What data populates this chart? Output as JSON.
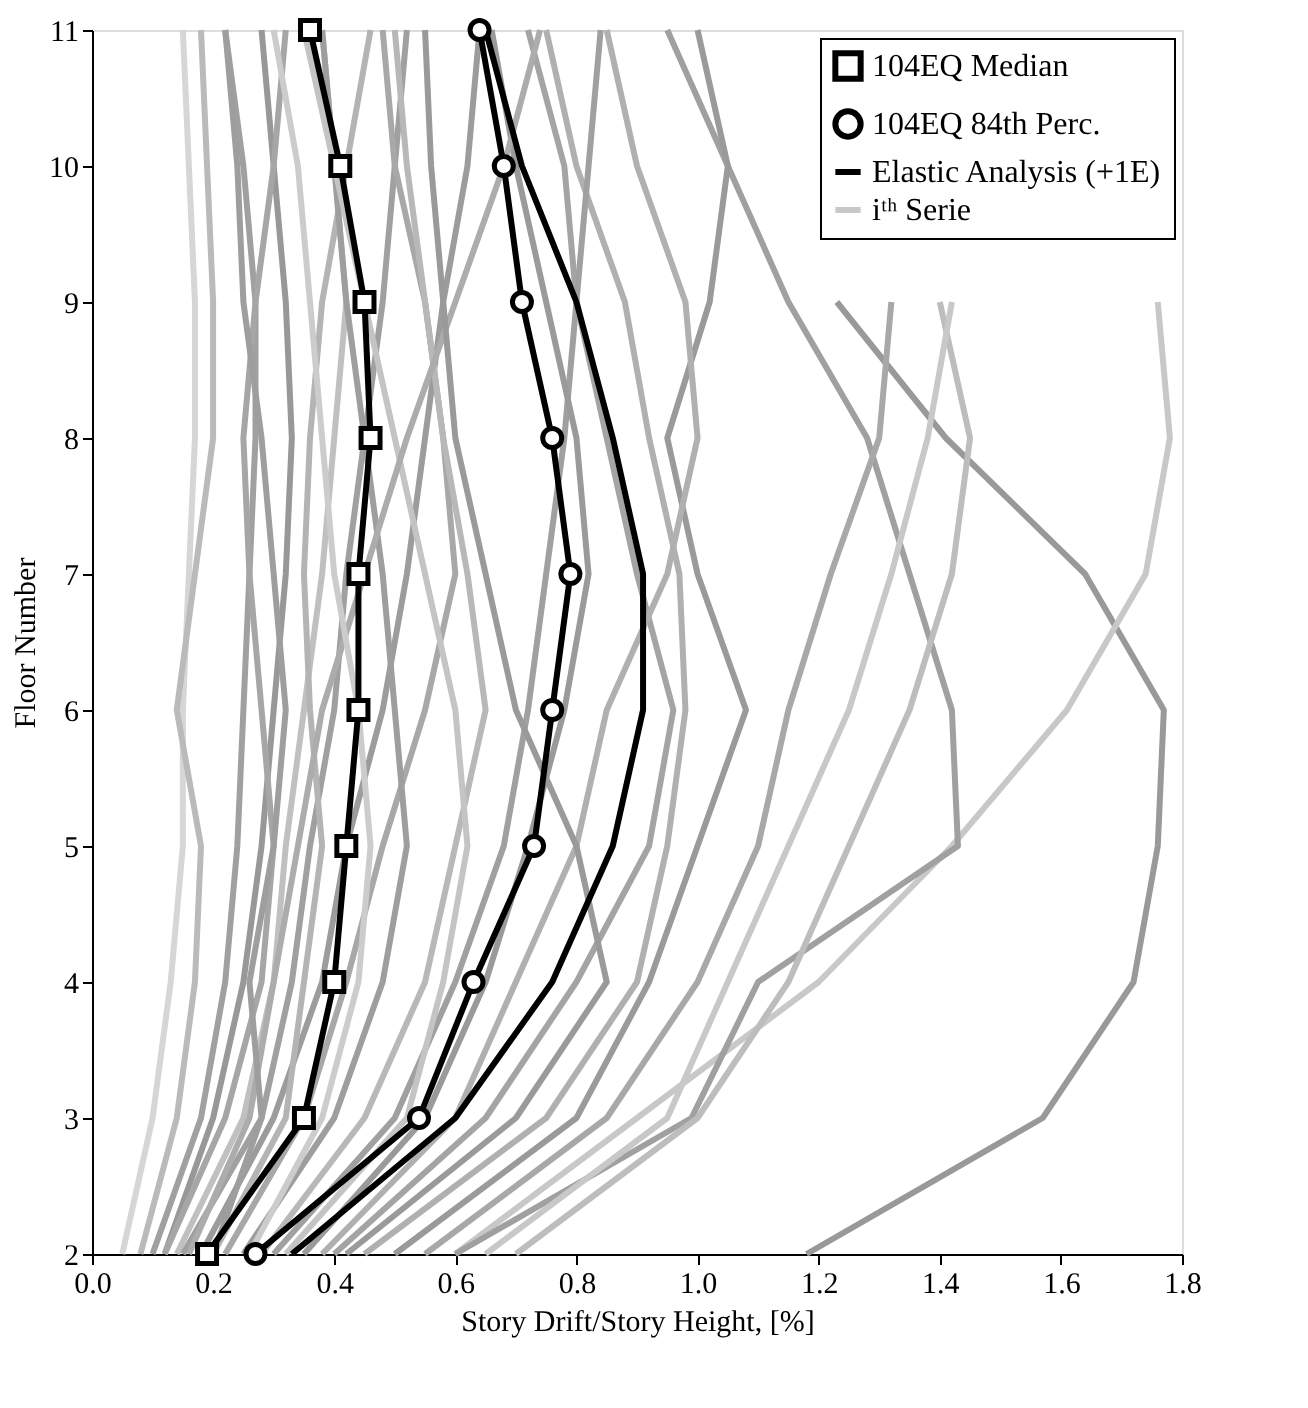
{
  "chart_data": {
    "type": "line",
    "xlabel": "Story Drift/Story Height, [%]",
    "ylabel": "Floor Number",
    "xlim": [
      0,
      1.8
    ],
    "xticks": [
      {
        "value": 0,
        "label": "0.0"
      },
      0.2,
      0.4,
      0.6,
      0.8,
      {
        "value": 1,
        "label": "1.0"
      },
      1.2,
      1.4,
      1.6,
      1.8
    ],
    "ylim": [
      2,
      11
    ],
    "yticks": [
      2,
      3,
      4,
      5,
      6,
      7,
      8,
      9,
      10,
      11
    ],
    "grid": false,
    "legend": "top right",
    "line_style": "solid",
    "series": [
      {
        "color": "#999999",
        "marker": "none",
        "x": [
          1.18,
          1.57,
          1.72,
          1.76,
          1.77,
          1.64,
          1.41,
          1.23,
          null,
          null
        ],
        "values": [
          2,
          3,
          4,
          5,
          6,
          7,
          8,
          9,
          null,
          null
        ]
      },
      {
        "color": "#c8c8c8",
        "marker": "none",
        "x": [
          0.6,
          0.9,
          1.2,
          1.42,
          1.61,
          1.74,
          1.78,
          1.76,
          null,
          null
        ],
        "values": [
          2,
          3,
          4,
          5,
          6,
          7,
          8,
          9,
          null,
          null
        ]
      },
      {
        "color": "#a0a0a0",
        "marker": "none",
        "x": [
          0.6,
          0.99,
          1.1,
          1.43,
          1.42,
          1.35,
          1.28,
          1.15,
          1.05,
          0.95
        ],
        "values": [
          2,
          3,
          4,
          5,
          6,
          7,
          8,
          9,
          10,
          11
        ]
      },
      {
        "color": "#bdbdbd",
        "marker": "none",
        "x": [
          0.7,
          1.0,
          1.15,
          1.25,
          1.35,
          1.42,
          1.45,
          1.4,
          null,
          null
        ],
        "values": [
          2,
          3,
          4,
          5,
          6,
          7,
          8,
          9,
          null,
          null
        ]
      },
      {
        "color": "#a8a8a8",
        "marker": "none",
        "x": [
          0.55,
          0.85,
          1.0,
          1.1,
          1.15,
          1.22,
          1.3,
          1.32,
          null,
          null
        ],
        "values": [
          2,
          3,
          4,
          5,
          6,
          7,
          8,
          9,
          null,
          null
        ]
      },
      {
        "color": "#9a9a9a",
        "marker": "none",
        "x": [
          0.5,
          0.8,
          0.92,
          1.0,
          1.08,
          1.0,
          0.95,
          1.02,
          1.05,
          1.0
        ],
        "values": [
          2,
          3,
          4,
          5,
          6,
          7,
          8,
          9,
          10,
          11
        ]
      },
      {
        "color": "#b0b0b0",
        "marker": "none",
        "x": [
          0.45,
          0.75,
          0.9,
          0.95,
          0.98,
          0.97,
          0.92,
          0.88,
          0.8,
          0.75
        ],
        "values": [
          2,
          3,
          4,
          5,
          6,
          7,
          8,
          9,
          10,
          11
        ]
      },
      {
        "color": "#a4a4a4",
        "marker": "none",
        "x": [
          0.4,
          0.65,
          0.8,
          0.92,
          0.96,
          0.9,
          0.85,
          0.8,
          0.78,
          0.72
        ],
        "values": [
          2,
          3,
          4,
          5,
          6,
          7,
          8,
          9,
          10,
          11
        ]
      },
      {
        "color": "#d6d6d6",
        "marker": "none",
        "x": [
          0.05,
          0.1,
          0.13,
          0.15,
          0.15,
          0.16,
          0.17,
          0.17,
          0.16,
          0.15
        ],
        "values": [
          2,
          3,
          4,
          5,
          6,
          7,
          8,
          9,
          10,
          11
        ]
      },
      {
        "color": "#bababa",
        "marker": "none",
        "x": [
          0.08,
          0.14,
          0.17,
          0.18,
          0.14,
          0.17,
          0.2,
          0.2,
          0.19,
          0.18
        ],
        "values": [
          2,
          3,
          4,
          5,
          6,
          7,
          8,
          9,
          10,
          11
        ]
      },
      {
        "color": "#a0a0a0",
        "marker": "none",
        "x": [
          0.1,
          0.18,
          0.22,
          0.24,
          0.25,
          0.26,
          0.27,
          0.27,
          0.25,
          0.22
        ],
        "values": [
          2,
          3,
          4,
          5,
          6,
          7,
          8,
          9,
          10,
          11
        ]
      },
      {
        "color": "#989898",
        "marker": "none",
        "x": [
          0.12,
          0.2,
          0.25,
          0.28,
          0.3,
          0.32,
          0.33,
          0.32,
          0.3,
          0.28
        ],
        "values": [
          2,
          3,
          4,
          5,
          6,
          7,
          8,
          9,
          10,
          11
        ]
      },
      {
        "color": "#c0c0c0",
        "marker": "none",
        "x": [
          0.14,
          0.25,
          0.3,
          0.32,
          0.35,
          0.38,
          0.4,
          0.42,
          0.4,
          0.38
        ],
        "values": [
          2,
          3,
          4,
          5,
          6,
          7,
          8,
          9,
          10,
          11
        ]
      },
      {
        "color": "#a0a0a0",
        "marker": "none",
        "x": [
          0.15,
          0.28,
          0.33,
          0.36,
          0.4,
          0.42,
          0.45,
          0.48,
          0.5,
          0.52
        ],
        "values": [
          2,
          3,
          4,
          5,
          6,
          7,
          8,
          9,
          10,
          11
        ]
      },
      {
        "color": "#9c9c9c",
        "marker": "none",
        "x": [
          0.18,
          0.3,
          0.38,
          0.42,
          0.48,
          0.52,
          0.55,
          0.58,
          0.62,
          0.64
        ],
        "values": [
          2,
          3,
          4,
          5,
          6,
          7,
          8,
          9,
          10,
          11
        ]
      },
      {
        "color": "#b4b4b4",
        "marker": "none",
        "x": [
          0.2,
          0.32,
          0.35,
          0.38,
          0.36,
          0.35,
          0.36,
          0.38,
          0.42,
          0.46
        ],
        "values": [
          2,
          3,
          4,
          5,
          6,
          7,
          8,
          9,
          10,
          11
        ]
      },
      {
        "color": "#a8a8a8",
        "marker": "none",
        "x": [
          0.22,
          0.35,
          0.42,
          0.48,
          0.55,
          0.6,
          0.58,
          0.55,
          0.5,
          0.48
        ],
        "values": [
          2,
          3,
          4,
          5,
          6,
          7,
          8,
          9,
          10,
          11
        ]
      },
      {
        "color": "#9e9e9e",
        "marker": "none",
        "x": [
          0.25,
          0.4,
          0.48,
          0.52,
          0.5,
          0.48,
          0.45,
          0.42,
          0.4,
          0.38
        ],
        "values": [
          2,
          3,
          4,
          5,
          6,
          7,
          8,
          9,
          10,
          11
        ]
      },
      {
        "color": "#b8b8b8",
        "marker": "none",
        "x": [
          0.28,
          0.45,
          0.55,
          0.6,
          0.65,
          0.62,
          0.58,
          0.55,
          0.52,
          0.5
        ],
        "values": [
          2,
          3,
          4,
          5,
          6,
          7,
          8,
          9,
          10,
          11
        ]
      },
      {
        "color": "#a0a0a0",
        "marker": "none",
        "x": [
          0.3,
          0.5,
          0.6,
          0.68,
          0.72,
          0.75,
          0.78,
          0.8,
          0.82,
          0.84
        ],
        "values": [
          2,
          3,
          4,
          5,
          6,
          7,
          8,
          9,
          10,
          11
        ]
      },
      {
        "color": "#c4c4c4",
        "marker": "none",
        "x": [
          0.32,
          0.52,
          0.58,
          0.62,
          0.6,
          0.55,
          0.5,
          0.45,
          0.4,
          0.35
        ],
        "values": [
          2,
          3,
          4,
          5,
          6,
          7,
          8,
          9,
          10,
          11
        ]
      },
      {
        "color": "#9a9a9a",
        "marker": "none",
        "x": [
          0.35,
          0.55,
          0.65,
          0.72,
          0.78,
          0.82,
          0.8,
          0.75,
          0.7,
          0.66
        ],
        "values": [
          2,
          3,
          4,
          5,
          6,
          7,
          8,
          9,
          10,
          11
        ]
      },
      {
        "color": "#acacac",
        "marker": "none",
        "x": [
          0.16,
          0.26,
          0.3,
          0.34,
          0.38,
          0.45,
          0.52,
          0.6,
          0.68,
          0.74
        ],
        "values": [
          2,
          3,
          4,
          5,
          6,
          7,
          8,
          9,
          10,
          11
        ]
      },
      {
        "color": "#a6a6a6",
        "marker": "none",
        "x": [
          0.12,
          0.22,
          0.28,
          0.3,
          0.28,
          0.26,
          0.25,
          0.27,
          0.3,
          0.32
        ],
        "values": [
          2,
          3,
          4,
          5,
          6,
          7,
          8,
          9,
          10,
          11
        ]
      },
      {
        "color": "#cccccc",
        "marker": "none",
        "x": [
          0.26,
          0.38,
          0.44,
          0.46,
          0.44,
          0.4,
          0.38,
          0.36,
          0.34,
          0.3
        ],
        "values": [
          2,
          3,
          4,
          5,
          6,
          7,
          8,
          9,
          10,
          11
        ]
      },
      {
        "color": "#b0b0b0",
        "marker": "none",
        "x": [
          0.38,
          0.6,
          0.7,
          0.8,
          0.85,
          0.95,
          1.0,
          0.98,
          0.9,
          0.85
        ],
        "values": [
          2,
          3,
          4,
          5,
          6,
          7,
          8,
          9,
          10,
          11
        ]
      },
      {
        "color": "#9a9a9a",
        "marker": "none",
        "x": [
          0.42,
          0.7,
          0.85,
          0.8,
          0.7,
          0.65,
          0.6,
          0.58,
          0.56,
          0.55
        ],
        "values": [
          2,
          3,
          4,
          5,
          6,
          7,
          8,
          9,
          10,
          11
        ]
      },
      {
        "color": "#9e9e9e",
        "marker": "none",
        "x": [
          0.2,
          0.28,
          0.26,
          0.3,
          0.32,
          0.3,
          0.28,
          0.25,
          0.24,
          0.22
        ],
        "values": [
          2,
          3,
          4,
          5,
          6,
          7,
          8,
          9,
          10,
          11
        ]
      },
      {
        "name": "iᵗʰ Serie",
        "color": "#c8c8c8",
        "marker": "none",
        "x": [
          0.65,
          0.95,
          1.05,
          1.15,
          1.25,
          1.32,
          1.38,
          1.42,
          null,
          null
        ],
        "values": [
          2,
          3,
          4,
          5,
          6,
          7,
          8,
          9,
          null,
          null
        ]
      },
      {
        "name": "Elastic Analysis (+1E)",
        "color": "#000000",
        "marker": "none",
        "x": [
          0.33,
          0.6,
          0.76,
          0.86,
          0.91,
          0.91,
          0.86,
          0.8,
          0.71,
          0.65
        ],
        "values": [
          2,
          3,
          4,
          5,
          6,
          7,
          8,
          9,
          10,
          11
        ]
      },
      {
        "name": "104EQ 84th Perc.",
        "color": "#000000",
        "marker": "circle",
        "x": [
          0.27,
          0.54,
          0.63,
          0.73,
          0.76,
          0.79,
          0.76,
          0.71,
          0.68,
          0.64
        ],
        "values": [
          2,
          3,
          4,
          5,
          6,
          7,
          8,
          9,
          10,
          11
        ]
      },
      {
        "name": "104EQ Median",
        "color": "#000000",
        "marker": "square",
        "x": [
          0.19,
          0.35,
          0.4,
          0.42,
          0.44,
          0.44,
          0.46,
          0.45,
          0.41,
          0.36
        ],
        "values": [
          2,
          3,
          4,
          5,
          6,
          7,
          8,
          9,
          10,
          11
        ]
      }
    ]
  }
}
